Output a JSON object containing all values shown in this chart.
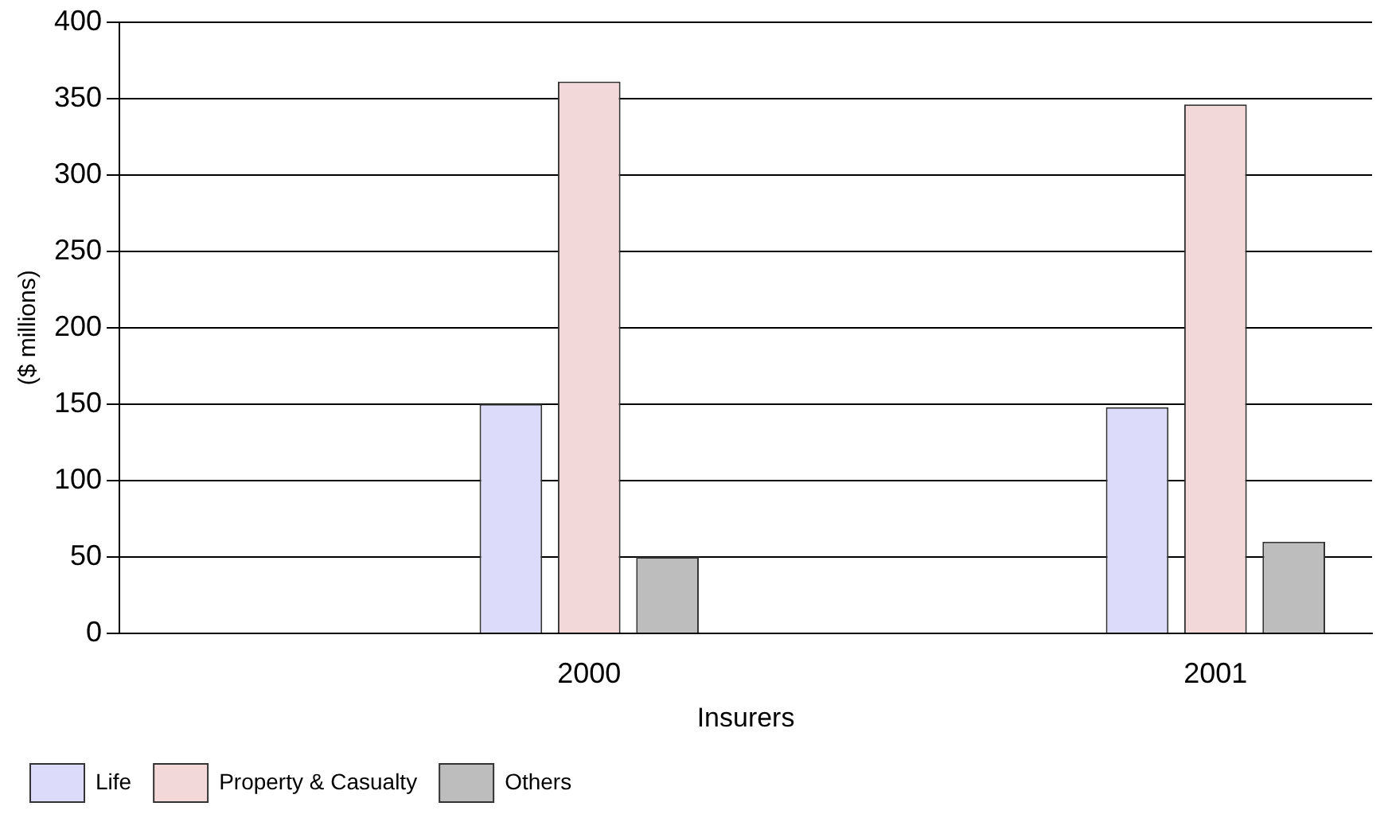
{
  "chart_data": {
    "type": "bar",
    "xlabel": "Insurers",
    "ylabel": "($ millions)",
    "categories": [
      null,
      "2000",
      null,
      "2001"
    ],
    "series": [
      {
        "name": "Life",
        "color": "#dcdcfa",
        "values": [
          null,
          150,
          null,
          148
        ]
      },
      {
        "name": "Property & Casualty",
        "color": "#f2d8d8",
        "values": [
          null,
          361,
          null,
          346
        ]
      },
      {
        "name": "Others",
        "color": "#bdbdbd",
        "values": [
          null,
          50,
          null,
          60
        ]
      }
    ],
    "ylim": [
      0,
      400
    ],
    "yticks": [
      0,
      50,
      100,
      150,
      200,
      250,
      300,
      350,
      400
    ],
    "grid": "y",
    "legend": "bottom"
  }
}
